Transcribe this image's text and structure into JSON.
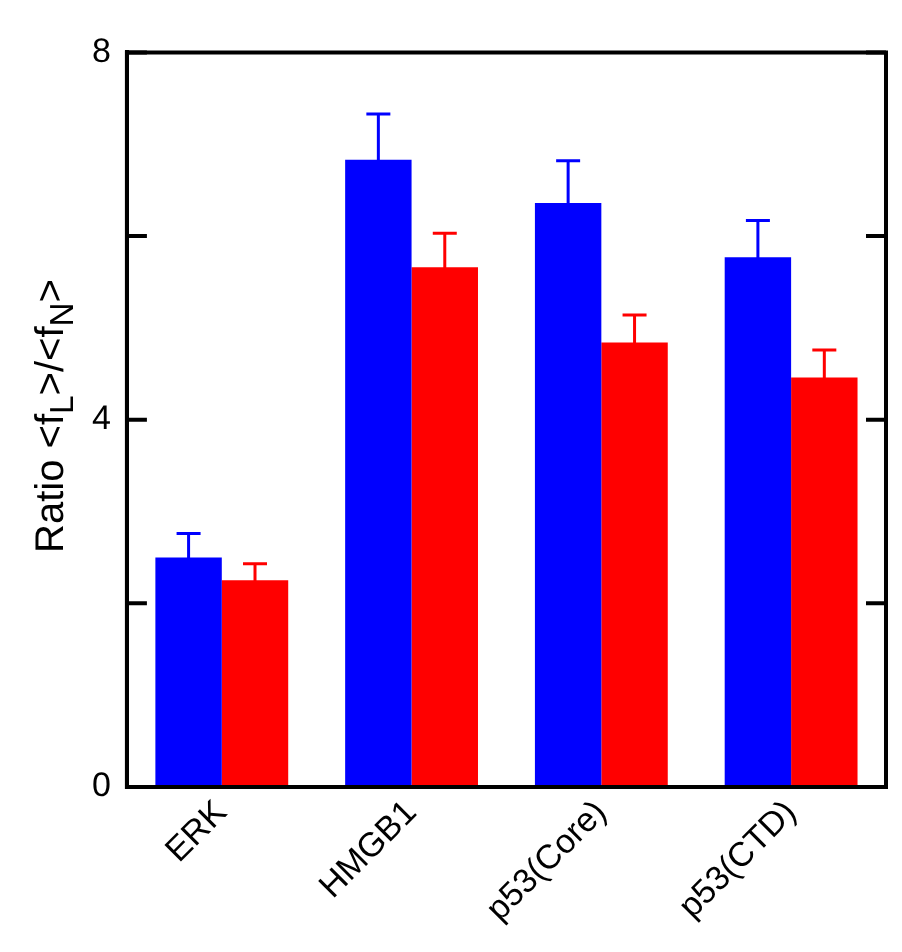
{
  "chart_data": {
    "type": "bar",
    "ylabel": "Ratio <f$_{L}$>/<f$_{N}$>",
    "categories": [
      "ERK",
      "HMGB1",
      "p53(Core)",
      "p53(CTD)"
    ],
    "series": [
      {
        "color": "#0000ff",
        "values": [
          2.5,
          6.83,
          6.36,
          5.77
        ],
        "errors": [
          0.26,
          0.5,
          0.46,
          0.4
        ]
      },
      {
        "color": "#ff0000",
        "values": [
          2.25,
          5.66,
          4.84,
          4.46
        ],
        "errors": [
          0.18,
          0.37,
          0.3,
          0.3
        ]
      }
    ],
    "ylim": [
      0,
      8
    ],
    "yticks": [
      0,
      {
        "value": 2,
        "label": null
      },
      4,
      {
        "value": 6,
        "label": null
      },
      8
    ],
    "grid": false,
    "legend": false
  }
}
